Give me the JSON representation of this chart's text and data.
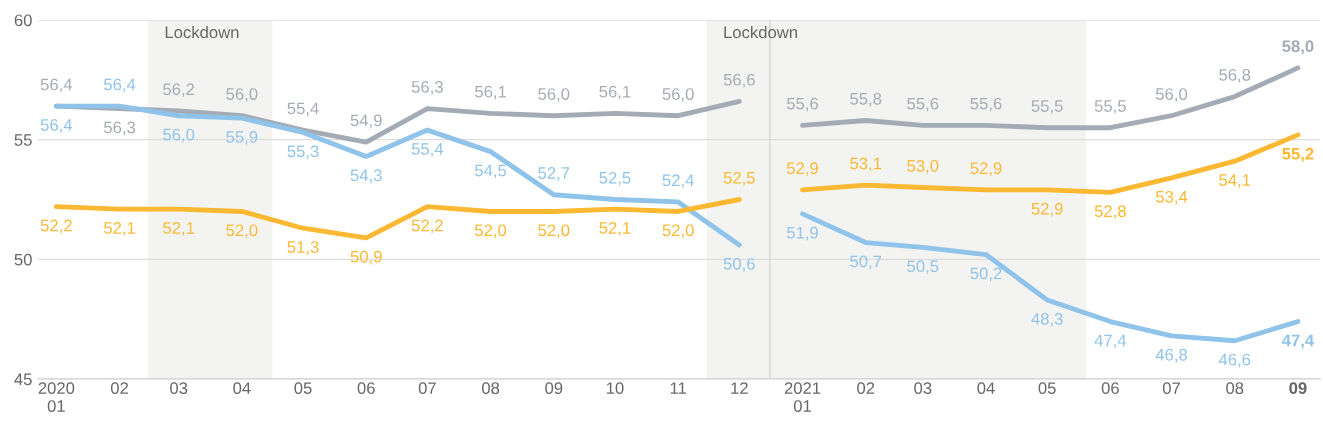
{
  "chart_data": {
    "type": "line",
    "xticks": [
      {
        "value": "2020-01",
        "label": "2020\n01"
      },
      {
        "value": "2020-02",
        "label": "02"
      },
      {
        "value": "2020-03",
        "label": "03"
      },
      {
        "value": "2020-04",
        "label": "04"
      },
      {
        "value": "2020-05",
        "label": "05"
      },
      {
        "value": "2020-06",
        "label": "06"
      },
      {
        "value": "2020-07",
        "label": "07"
      },
      {
        "value": "2020-08",
        "label": "08"
      },
      {
        "value": "2020-09",
        "label": "09"
      },
      {
        "value": "2020-10",
        "label": "10"
      },
      {
        "value": "2020-11",
        "label": "11"
      },
      {
        "value": "2020-12",
        "label": "12"
      },
      {
        "value": "2021-01",
        "label": "2021\n01"
      },
      {
        "value": "2021-02",
        "label": "02"
      },
      {
        "value": "2021-03",
        "label": "03"
      },
      {
        "value": "2021-04",
        "label": "04"
      },
      {
        "value": "2021-05",
        "label": "05"
      },
      {
        "value": "2021-06",
        "label": "06"
      },
      {
        "value": "2021-07",
        "label": "07"
      },
      {
        "value": "2021-08",
        "label": "08"
      },
      {
        "value": "2021-09",
        "label": "09"
      }
    ],
    "xlim": [
      "2019-12-23",
      "2021-09-12"
    ],
    "ylim": [
      45,
      60
    ],
    "yticks": [
      45,
      50,
      55,
      60
    ],
    "grid": "y",
    "line_style": "solid",
    "bands": [
      {
        "axis": "x",
        "from": "2020-02-15",
        "to": "2020-04-16",
        "label": "Lockdown",
        "color": "#f3f3f1"
      },
      {
        "axis": "x",
        "from": "2020-11-15",
        "to": "2021-05-20",
        "label": "Lockdown",
        "color": "#f3f3f1"
      }
    ],
    "ref_lines": [
      {
        "axis": "x",
        "value": "2020-12-16",
        "color": "#d5d5d5"
      }
    ],
    "series": [
      {
        "color": "#a5abb5",
        "x": [
          "2020-01",
          "2020-02",
          "2020-03",
          "2020-04",
          "2020-05",
          "2020-06",
          "2020-07",
          "2020-08",
          "2020-09",
          "2020-10",
          "2020-11",
          "2020-12"
        ],
        "values": [
          56.4,
          56.3,
          56.2,
          56.0,
          55.4,
          54.9,
          56.3,
          56.1,
          56.0,
          56.1,
          56.0,
          56.6
        ],
        "value_labels": [
          "56,4",
          "56,3",
          "56,2",
          "56,0",
          "55,4",
          "54,9",
          "56,3",
          "56,1",
          "56,0",
          "56,1",
          "56,0",
          "56,6"
        ]
      },
      {
        "color": "#a5abb5",
        "x": [
          "2021-01",
          "2021-02",
          "2021-03",
          "2021-04",
          "2021-05",
          "2021-06",
          "2021-07",
          "2021-08",
          "2021-09"
        ],
        "values": [
          55.6,
          55.8,
          55.6,
          55.6,
          55.5,
          55.5,
          56.0,
          56.8,
          58.0
        ],
        "value_labels": [
          "55,6",
          "55,8",
          "55,6",
          "55,6",
          "55,5",
          "55,5",
          "56,0",
          "56,8",
          "58,0"
        ]
      },
      {
        "color": "#8fc3ea",
        "x": [
          "2020-01",
          "2020-02",
          "2020-03",
          "2020-04",
          "2020-05",
          "2020-06",
          "2020-07",
          "2020-08",
          "2020-09",
          "2020-10",
          "2020-11",
          "2020-12"
        ],
        "values": [
          56.4,
          56.4,
          56.0,
          55.9,
          55.3,
          54.3,
          55.4,
          54.5,
          52.7,
          52.5,
          52.4,
          50.6
        ],
        "value_labels": [
          "56,4",
          "56,4",
          "56,0",
          "55,9",
          "55,3",
          "54,3",
          "55,4",
          "54,5",
          "52,7",
          "52,5",
          "52,4",
          "50,6"
        ]
      },
      {
        "color": "#8fc3ea",
        "x": [
          "2021-01",
          "2021-02",
          "2021-03",
          "2021-04",
          "2021-05",
          "2021-06",
          "2021-07",
          "2021-08",
          "2021-09"
        ],
        "values": [
          51.9,
          50.7,
          50.5,
          50.2,
          48.3,
          47.4,
          46.8,
          46.6,
          47.4
        ],
        "value_labels": [
          "51,9",
          "50,7",
          "50,5",
          "50,2",
          "48,3",
          "47,4",
          "46,8",
          "46,6",
          "47,4"
        ]
      },
      {
        "color": "#fbb832",
        "x": [
          "2020-01",
          "2020-02",
          "2020-03",
          "2020-04",
          "2020-05",
          "2020-06",
          "2020-07",
          "2020-08",
          "2020-09",
          "2020-10",
          "2020-11",
          "2020-12"
        ],
        "values": [
          52.2,
          52.1,
          52.1,
          52.0,
          51.3,
          50.9,
          52.2,
          52.0,
          52.0,
          52.1,
          52.0,
          52.5
        ],
        "value_labels": [
          "52,2",
          "52,1",
          "52,1",
          "52,0",
          "51,3",
          "50,9",
          "52,2",
          "52,0",
          "52,0",
          "52,1",
          "52,0",
          "52,5"
        ]
      },
      {
        "color": "#fbb832",
        "x": [
          "2021-01",
          "2021-02",
          "2021-03",
          "2021-04",
          "2021-05",
          "2021-06",
          "2021-07",
          "2021-08",
          "2021-09"
        ],
        "values": [
          52.9,
          53.1,
          53.0,
          52.9,
          52.9,
          52.8,
          53.4,
          54.1,
          55.2
        ],
        "value_labels": [
          "52,9",
          "53,1",
          "53,0",
          "52,9",
          "52,9",
          "52,8",
          "53,4",
          "54,1",
          "55,2"
        ]
      }
    ]
  }
}
